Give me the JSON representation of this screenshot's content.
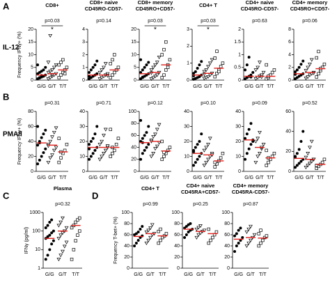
{
  "chart_data": [
    {
      "type": "scatter",
      "panel": "A",
      "row_label": "IL-12",
      "ylabel": "Frequency IFNγ+ (%)",
      "title": [
        "CD8+"
      ],
      "p": "p=0.03",
      "star": "*",
      "categories": [
        "G/G",
        "G/T",
        "T/T"
      ],
      "ylim": [
        0,
        20
      ],
      "yticks": [
        0,
        5,
        10,
        15,
        20
      ],
      "groups": [
        {
          "values": [
            0.5,
            1,
            1.2,
            1.5,
            2,
            2.5,
            3,
            3.5,
            4,
            5,
            6,
            0.8,
            1.8
          ],
          "median": 2
        },
        {
          "values": [
            0.5,
            1,
            1.5,
            2,
            2.5,
            3,
            3.5,
            4,
            5,
            6,
            7,
            17.5,
            2.2
          ],
          "median": 2.5
        },
        {
          "values": [
            1,
            2,
            3,
            4,
            5,
            6,
            7,
            8,
            2.5
          ],
          "median": 4
        }
      ]
    },
    {
      "type": "scatter",
      "title": [
        "CD8+ naive",
        "CD45RO-CD57-"
      ],
      "p": "p=0.14",
      "categories": [
        "G/G",
        "G/T",
        "T/T"
      ],
      "ylim": [
        0,
        4
      ],
      "yticks": [
        0,
        1,
        2,
        3,
        4
      ],
      "groups": [
        {
          "values": [
            0.1,
            0.2,
            0.3,
            0.4,
            0.5,
            0.6,
            0.8,
            1,
            1.2,
            1.5,
            0.3
          ],
          "median": 0.4
        },
        {
          "values": [
            0.1,
            0.2,
            0.3,
            0.4,
            0.5,
            0.6,
            0.8,
            1,
            1.3,
            0.35
          ],
          "median": 0.4
        },
        {
          "values": [
            0.2,
            0.4,
            0.6,
            0.8,
            1,
            1.3,
            1.6,
            2
          ],
          "median": 0.8
        }
      ]
    },
    {
      "type": "scatter",
      "title": [
        "CD8+ memory",
        "CD45RO+CD57-"
      ],
      "p": "p=0.03",
      "star": "*",
      "categories": [
        "G/G",
        "G/T",
        "T/T"
      ],
      "ylim": [
        0,
        20
      ],
      "yticks": [
        0,
        5,
        10,
        15,
        20
      ],
      "groups": [
        {
          "values": [
            0.5,
            1,
            1.5,
            2,
            2.5,
            3,
            4,
            5,
            6,
            7,
            8,
            1.2
          ],
          "median": 2.5
        },
        {
          "values": [
            0.5,
            1,
            1.5,
            2,
            3,
            4,
            5,
            6,
            7,
            9,
            2.8
          ],
          "median": 3
        },
        {
          "values": [
            1,
            2,
            4,
            6,
            8,
            10,
            12,
            15,
            5
          ],
          "median": 6
        }
      ]
    },
    {
      "type": "scatter",
      "title": [
        "CD4+ T"
      ],
      "p": "p=0.03",
      "star": "*",
      "categories": [
        "G/G",
        "G/T",
        "T/T"
      ],
      "ylim": [
        0,
        3
      ],
      "yticks": [
        0,
        1,
        2,
        3
      ],
      "groups": [
        {
          "values": [
            0.05,
            0.1,
            0.15,
            0.2,
            0.3,
            0.4,
            0.5,
            0.7,
            0.9,
            1.1,
            0.25
          ],
          "median": 0.3
        },
        {
          "values": [
            0.1,
            0.15,
            0.2,
            0.3,
            0.4,
            0.5,
            0.6,
            0.8,
            1,
            1.2,
            0.35
          ],
          "median": 0.4
        },
        {
          "values": [
            0.2,
            0.4,
            0.6,
            0.8,
            1,
            1.3,
            1.7,
            0.5
          ],
          "median": 0.7
        }
      ]
    },
    {
      "type": "scatter",
      "title": [
        "CD4+ naive",
        "CD45RO-CD57-"
      ],
      "p": "p=0.63",
      "categories": [
        "G/G",
        "G/T",
        "T/T"
      ],
      "ylim": [
        0,
        2
      ],
      "yticks": [
        0,
        0.5,
        1,
        1.5,
        2
      ],
      "groups": [
        {
          "values": [
            0.05,
            0.1,
            0.15,
            0.2,
            0.3,
            0.4,
            0.6,
            0.9,
            0.12
          ],
          "median": 0.15
        },
        {
          "values": [
            0.05,
            0.1,
            0.15,
            0.2,
            0.3,
            0.4,
            0.5,
            0.7,
            0.12
          ],
          "median": 0.15
        },
        {
          "values": [
            0.05,
            0.1,
            0.2,
            0.3,
            0.4,
            0.6,
            0.15
          ],
          "median": 0.15
        }
      ]
    },
    {
      "type": "scatter",
      "title": [
        "CD4+ memory",
        "CD45RO+CD57-"
      ],
      "p": "p=0.06",
      "categories": [
        "G/G",
        "G/T",
        "T/T"
      ],
      "ylim": [
        0,
        8
      ],
      "yticks": [
        0,
        2,
        4,
        6,
        8
      ],
      "groups": [
        {
          "values": [
            0.2,
            0.4,
            0.6,
            0.8,
            1,
            1.3,
            1.6,
            2,
            2.5,
            3,
            0.9
          ],
          "median": 1
        },
        {
          "values": [
            0.3,
            0.5,
            0.8,
            1,
            1.2,
            1.5,
            2,
            2.5,
            3.2,
            1.1
          ],
          "median": 1.2
        },
        {
          "values": [
            0.5,
            1,
            1.5,
            2,
            2.5,
            3.5,
            4.5,
            1.8
          ],
          "median": 1.8
        }
      ]
    },
    {
      "type": "scatter",
      "panel": "B",
      "row_label": "PMA/I",
      "ylabel": "Frequency IFNγ+ (%)",
      "title": [],
      "p": "p=0.31",
      "categories": [
        "G/G",
        "G/T",
        "T/T"
      ],
      "ylim": [
        0,
        80
      ],
      "yticks": [
        0,
        20,
        40,
        60,
        80
      ],
      "groups": [
        {
          "values": [
            10,
            15,
            20,
            25,
            30,
            35,
            40,
            45,
            50,
            55,
            60,
            38
          ],
          "median": 38
        },
        {
          "values": [
            12,
            18,
            22,
            28,
            32,
            36,
            40,
            46,
            52,
            58,
            34
          ],
          "median": 35
        },
        {
          "values": [
            12,
            18,
            24,
            28,
            36,
            44,
            26
          ],
          "median": 26
        }
      ]
    },
    {
      "type": "scatter",
      "title": [],
      "p": "p=0.71",
      "categories": [
        "G/G",
        "G/T",
        "T/T"
      ],
      "ylim": [
        0,
        40
      ],
      "yticks": [
        0,
        10,
        20,
        30,
        40
      ],
      "groups": [
        {
          "values": [
            8,
            10,
            12,
            14,
            16,
            18,
            20,
            22,
            25,
            30,
            15
          ],
          "median": 16
        },
        {
          "values": [
            8,
            10,
            12,
            14,
            16,
            18,
            20,
            24,
            28,
            17
          ],
          "median": 16
        },
        {
          "values": [
            10,
            12,
            14,
            18,
            22,
            28,
            16
          ],
          "median": 16
        }
      ]
    },
    {
      "type": "scatter",
      "title": [],
      "p": "p=0.12",
      "categories": [
        "G/G",
        "G/T",
        "T/T"
      ],
      "ylim": [
        0,
        100
      ],
      "yticks": [
        0,
        20,
        40,
        60,
        80,
        100
      ],
      "groups": [
        {
          "values": [
            20,
            30,
            35,
            40,
            45,
            50,
            55,
            60,
            65,
            75,
            85,
            48
          ],
          "median": 48
        },
        {
          "values": [
            25,
            30,
            38,
            42,
            48,
            52,
            58,
            62,
            70,
            78,
            50
          ],
          "median": 50
        },
        {
          "values": [
            20,
            25,
            30,
            35,
            40,
            50,
            32
          ],
          "median": 34
        }
      ]
    },
    {
      "type": "scatter",
      "title": [],
      "p": "p=0.10",
      "categories": [
        "G/G",
        "G/T",
        "T/T"
      ],
      "ylim": [
        0,
        40
      ],
      "yticks": [
        0,
        10,
        20,
        30,
        40
      ],
      "groups": [
        {
          "values": [
            4,
            6,
            8,
            10,
            12,
            14,
            16,
            18,
            20,
            25,
            13
          ],
          "median": 12
        },
        {
          "values": [
            4,
            6,
            8,
            10,
            12,
            14,
            16,
            18,
            22,
            11
          ],
          "median": 11
        },
        {
          "values": [
            3,
            5,
            7,
            9,
            12,
            6
          ],
          "median": 7
        }
      ]
    },
    {
      "type": "scatter",
      "title": [],
      "p": "p=0.09",
      "categories": [
        "G/G",
        "G/T",
        "T/T"
      ],
      "ylim": [
        0,
        40
      ],
      "yticks": [
        0,
        10,
        20,
        30,
        40
      ],
      "groups": [
        {
          "values": [
            8,
            12,
            15,
            18,
            20,
            22,
            25,
            28,
            32,
            21
          ],
          "median": 21
        },
        {
          "values": [
            6,
            10,
            12,
            15,
            18,
            20,
            22,
            26,
            16
          ],
          "median": 16
        },
        {
          "values": [
            4,
            6,
            8,
            10,
            12,
            14,
            9
          ],
          "median": 9
        }
      ]
    },
    {
      "type": "scatter",
      "title": [],
      "p": "p=0.52",
      "categories": [
        "G/G",
        "G/T",
        "T/T"
      ],
      "ylim": [
        0,
        60
      ],
      "yticks": [
        0,
        20,
        40,
        60
      ],
      "groups": [
        {
          "values": [
            4,
            6,
            8,
            10,
            12,
            15,
            18,
            22,
            30,
            40,
            14
          ],
          "median": 13
        },
        {
          "values": [
            4,
            6,
            8,
            10,
            12,
            14,
            18,
            24,
            30,
            12
          ],
          "median": 12
        },
        {
          "values": [
            3,
            5,
            7,
            9,
            12,
            6
          ],
          "median": 7
        }
      ]
    },
    {
      "type": "scatter",
      "panel": "C",
      "ylabel": "IFNγ (pg/ml)",
      "log_y": true,
      "title": [
        "Plasma"
      ],
      "p": "p=0.32",
      "categories": [
        "G/G",
        "G/T",
        "T/T"
      ],
      "ylim": [
        1,
        1000
      ],
      "yticks": [
        1,
        10,
        100,
        1000
      ],
      "groups": [
        {
          "values": [
            3,
            5,
            10,
            20,
            30,
            40,
            50,
            60,
            80,
            100,
            150,
            200,
            300,
            400
          ],
          "median": 40
        },
        {
          "values": [
            3,
            5,
            8,
            15,
            25,
            40,
            60,
            80,
            100,
            150,
            200,
            300,
            500
          ],
          "median": 100
        },
        {
          "values": [
            3,
            10,
            30,
            60,
            100,
            150,
            200,
            300,
            400,
            500
          ],
          "median": 200
        }
      ]
    },
    {
      "type": "scatter",
      "panel": "D",
      "ylabel": "Frequency T-bet+ (%)",
      "title": [
        "CD4+ T"
      ],
      "p": "p=0.99",
      "categories": [
        "G/G",
        "G/T",
        "T/T"
      ],
      "ylim": [
        0,
        100
      ],
      "yticks": [
        0,
        20,
        40,
        60,
        80,
        100
      ],
      "groups": [
        {
          "values": [
            40,
            45,
            50,
            55,
            58,
            60,
            62,
            65,
            70,
            75
          ],
          "median": 57
        },
        {
          "values": [
            45,
            50,
            55,
            60,
            62,
            65,
            68,
            72,
            78
          ],
          "median": 62
        },
        {
          "values": [
            45,
            50,
            55,
            58,
            62,
            66,
            70
          ],
          "median": 58
        }
      ]
    },
    {
      "type": "scatter",
      "title": [
        "CD4+ naive",
        "CD45RA+CD57-"
      ],
      "p": "p=0.25",
      "categories": [
        "G/G",
        "G/T",
        "T/T"
      ],
      "ylim": [
        0,
        100
      ],
      "yticks": [
        0,
        20,
        40,
        60,
        80,
        100
      ],
      "groups": [
        {
          "values": [
            55,
            60,
            65,
            68,
            70,
            72,
            75,
            78,
            80
          ],
          "median": 70
        },
        {
          "values": [
            55,
            60,
            63,
            66,
            68,
            70,
            73,
            76
          ],
          "median": 66
        },
        {
          "values": [
            45,
            50,
            55,
            60,
            65,
            70
          ],
          "median": 62
        }
      ]
    },
    {
      "type": "scatter",
      "title": [
        "CD4+ memory",
        "CD45RA-CD57-"
      ],
      "p": "p=0.87",
      "categories": [
        "G/G",
        "G/T",
        "T/T"
      ],
      "ylim": [
        0,
        100
      ],
      "yticks": [
        0,
        20,
        40,
        60,
        80,
        100
      ],
      "groups": [
        {
          "values": [
            30,
            40,
            45,
            50,
            55,
            58,
            62,
            68,
            72
          ],
          "median": 52
        },
        {
          "values": [
            40,
            45,
            50,
            55,
            60,
            65,
            70,
            75
          ],
          "median": 55
        },
        {
          "values": [
            40,
            45,
            50,
            55,
            58,
            62,
            68
          ],
          "median": 54
        }
      ]
    }
  ]
}
